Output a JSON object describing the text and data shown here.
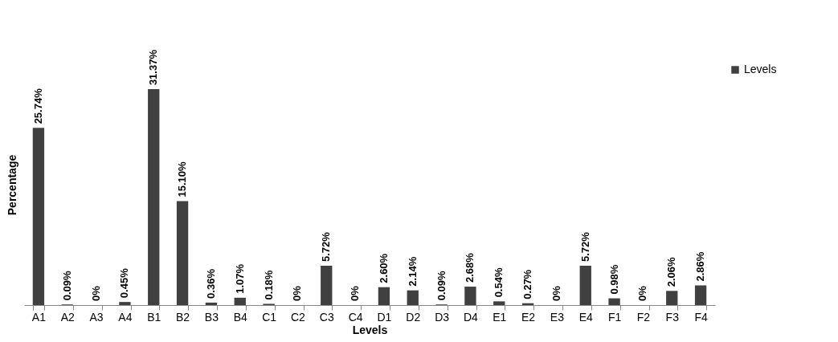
{
  "chart_data": {
    "type": "bar",
    "xlabel": "Levels",
    "ylabel": "Percentage",
    "legend": "top right",
    "categories": [
      "A1",
      "A2",
      "A3",
      "A4",
      "B1",
      "B2",
      "B3",
      "B4",
      "C1",
      "C2",
      "C3",
      "C4",
      "D1",
      "D2",
      "D3",
      "D4",
      "E1",
      "E2",
      "E3",
      "E4",
      "F1",
      "F2",
      "F3",
      "F4"
    ],
    "series": [
      {
        "name": "Levels",
        "color": "#404040",
        "values": [
          25.74,
          0.09,
          0,
          0.45,
          31.37,
          15.1,
          0.36,
          1.07,
          0.18,
          0,
          5.72,
          0,
          2.6,
          2.14,
          0.09,
          2.68,
          0.54,
          0.27,
          0,
          5.72,
          0.98,
          0,
          2.06,
          2.86
        ],
        "value_labels": [
          "25.74%",
          "0.09%",
          "0%",
          "0.45%",
          "31.37%",
          "15.10%",
          "0.36%",
          "1.07%",
          "0.18%",
          "0%",
          "5.72%",
          "0%",
          "2.60%",
          "2.14%",
          "0.09%",
          "2.68%",
          "0.54%",
          "0.27%",
          "0%",
          "5.72%",
          "0.98%",
          "0%",
          "2.06%",
          "2.86%"
        ]
      }
    ]
  }
}
